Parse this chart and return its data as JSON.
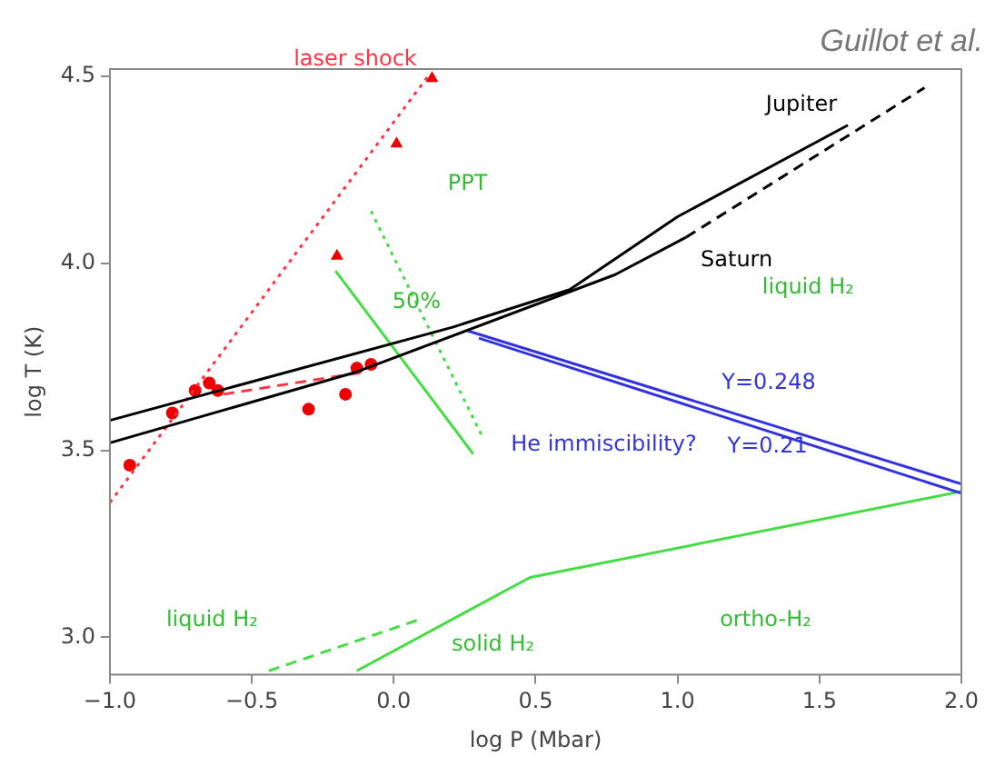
{
  "chart_data": {
    "type": "line",
    "xlabel": "log P (Mbar)",
    "ylabel": "log T (K)",
    "xlim": [
      -1,
      2
    ],
    "ylim": [
      2.9,
      4.52
    ],
    "xticks": [
      {
        "value": -1,
        "label": "−1.0"
      },
      {
        "value": -0.5,
        "label": "−0.5"
      },
      {
        "value": 0,
        "label": "0.0"
      },
      {
        "value": 0.5,
        "label": "0.5"
      },
      {
        "value": 1,
        "label": "1.0"
      },
      {
        "value": 1.5,
        "label": "1.5"
      },
      {
        "value": 2,
        "label": "2.0"
      }
    ],
    "yticks": [
      {
        "value": 3,
        "label": "3.0"
      },
      {
        "value": 3.5,
        "label": "3.5"
      },
      {
        "value": 4,
        "label": "4.0"
      },
      {
        "value": 4.5,
        "label": "4.5"
      }
    ],
    "grid": false,
    "legend": false,
    "series": [
      {
        "name": "Jupiter",
        "type": "line",
        "color": "#000000",
        "line_style": "solid",
        "marker": "none",
        "x": [
          -1,
          -0.58,
          0.21,
          0.62,
          1.0,
          1.6
        ],
        "values": [
          3.58,
          3.667,
          3.83,
          3.93,
          4.125,
          4.37
        ]
      },
      {
        "name": "Saturn",
        "type": "line",
        "color": "#000000",
        "line_style": "solid",
        "marker": "none",
        "x": [
          -1,
          -0.13,
          0.78,
          1.03
        ],
        "values": [
          3.52,
          3.71,
          3.97,
          4.07
        ]
      },
      {
        "type": "line",
        "color": "#000000",
        "line_style": "dashed",
        "marker": "none",
        "x": [
          1.03,
          1.87
        ],
        "values": [
          4.07,
          4.47
        ]
      },
      {
        "name": "Y=0.248",
        "type": "line",
        "color": "#3333dd",
        "line_style": "solid",
        "marker": "none",
        "x": [
          0.26,
          2.0
        ],
        "values": [
          3.82,
          3.41
        ]
      },
      {
        "name": "Y=0.21",
        "type": "line",
        "color": "#3333dd",
        "line_style": "solid",
        "marker": "none",
        "x": [
          0.3,
          2.0
        ],
        "values": [
          3.8,
          3.385
        ]
      },
      {
        "name": "laser shock",
        "type": "line",
        "color": "#ff3344",
        "line_style": "dotted",
        "marker": "none",
        "x": [
          -1,
          0.12
        ],
        "values": [
          3.36,
          4.5
        ]
      },
      {
        "type": "line",
        "color": "#ff3344",
        "line_style": "dashed",
        "marker": "none",
        "x": [
          -0.6,
          -0.1
        ],
        "values": [
          3.65,
          3.71
        ]
      },
      {
        "type": "line",
        "color": "#44dd44",
        "line_style": "solid",
        "marker": "none",
        "x": [
          -0.205,
          0.28
        ],
        "values": [
          3.98,
          3.49
        ]
      },
      {
        "type": "line",
        "color": "#44dd44",
        "line_style": "dotted",
        "marker": "none",
        "x": [
          -0.08,
          0.31
        ],
        "values": [
          4.14,
          3.54
        ]
      },
      {
        "type": "line",
        "color": "#44dd44",
        "line_style": "solid",
        "marker": "none",
        "x": [
          -0.13,
          0.48,
          2.0
        ],
        "values": [
          2.91,
          3.16,
          3.39
        ]
      },
      {
        "type": "line",
        "color": "#44dd44",
        "line_style": "dashed",
        "marker": "none",
        "x": [
          -0.44,
          0.1
        ],
        "values": [
          2.91,
          3.05
        ]
      },
      {
        "type": "scatter",
        "color": "#ee0000",
        "marker": "circle",
        "x": [
          -0.93,
          -0.78,
          -0.7,
          -0.65,
          -0.62,
          -0.3,
          -0.17,
          -0.13,
          -0.08
        ],
        "values": [
          3.46,
          3.6,
          3.66,
          3.68,
          3.66,
          3.61,
          3.65,
          3.72,
          3.73
        ]
      },
      {
        "type": "scatter",
        "color": "#ee0000",
        "marker": "triangle",
        "x": [
          -0.2,
          0.01,
          0.135
        ],
        "values": [
          4.02,
          4.32,
          4.495
        ]
      }
    ],
    "annotations": [
      "Guillot et al.",
      "He immiscibility?",
      "liquid H₂",
      "liquid H₂",
      "solid H₂",
      "ortho-H₂",
      {
        "text": "50%",
        "x": 0.08,
        "y": 3.88
      },
      "PPT"
    ]
  }
}
